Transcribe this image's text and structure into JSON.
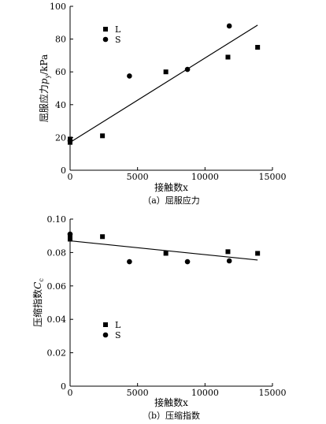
{
  "chart_data": [
    {
      "type": "scatter",
      "caption": "（a）屈服应力",
      "xlabel": "接触数x",
      "ylabel_main": "屈服应力",
      "ylabel_sym": "p",
      "ylabel_sub": "y",
      "ylabel_unit": "/kPa",
      "xlim": [
        0,
        15000
      ],
      "ylim": [
        0,
        100
      ],
      "xticks": [
        0,
        5000,
        10000,
        15000
      ],
      "yticks": [
        0,
        20,
        40,
        60,
        80,
        100
      ],
      "xtick_labels": [
        "0",
        "5000",
        "10000",
        "15000"
      ],
      "ytick_labels": [
        "0",
        "20",
        "40",
        "60",
        "80",
        "100"
      ],
      "legend_position": "top-left",
      "series": [
        {
          "name": "L",
          "marker": "square",
          "x": [
            0,
            0,
            2400,
            7100,
            11700,
            13900
          ],
          "y": [
            17,
            19,
            21,
            60,
            69,
            75
          ]
        },
        {
          "name": "S",
          "marker": "circle",
          "x": [
            0,
            4400,
            8700,
            11800
          ],
          "y": [
            18,
            57.5,
            61.5,
            88
          ]
        }
      ],
      "fit_line": {
        "x": [
          0,
          13900
        ],
        "y": [
          17,
          88.5
        ]
      }
    },
    {
      "type": "scatter",
      "caption": "（b）压缩指数",
      "xlabel": "接触数x",
      "ylabel_main": "压缩指数",
      "ylabel_sym": "C",
      "ylabel_sub": "c",
      "ylabel_unit": "",
      "xlim": [
        0,
        15000
      ],
      "ylim": [
        0,
        0.1
      ],
      "xticks": [
        0,
        5000,
        10000,
        15000
      ],
      "yticks": [
        0,
        0.02,
        0.04,
        0.06,
        0.08,
        0.1
      ],
      "xtick_labels": [
        "0",
        "5000",
        "10000",
        "15000"
      ],
      "ytick_labels": [
        "0",
        "0.02",
        "0.04",
        "0.06",
        "0.08",
        "0.10"
      ],
      "legend_position": "left-middle",
      "series": [
        {
          "name": "L",
          "marker": "square",
          "x": [
            0,
            0,
            2400,
            7100,
            11700,
            13900
          ],
          "y": [
            0.088,
            0.089,
            0.0895,
            0.0795,
            0.0805,
            0.0795
          ]
        },
        {
          "name": "S",
          "marker": "circle",
          "x": [
            0,
            4400,
            8700,
            11800
          ],
          "y": [
            0.091,
            0.0745,
            0.0745,
            0.075
          ]
        }
      ],
      "fit_line": {
        "x": [
          0,
          13900
        ],
        "y": [
          0.087,
          0.0755
        ]
      }
    }
  ]
}
